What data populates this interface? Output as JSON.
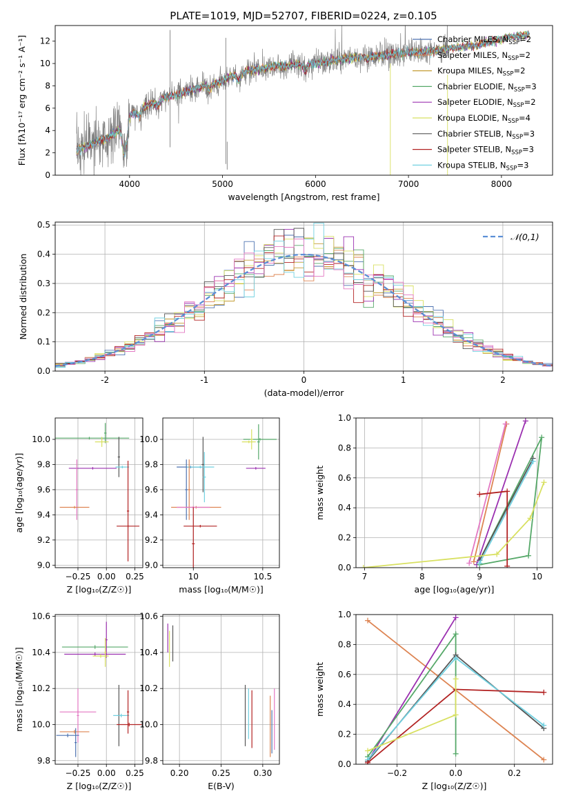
{
  "chart_data": [
    {
      "type": "line",
      "title": "PLATE=1019, MJD=52707, FIBERID=0224, z=0.105",
      "xlabel": "wavelength [Angstrom, rest frame]",
      "ylabel": "Flux [fλ10⁻¹⁷ erg cm⁻² s⁻¹ A⁻¹]",
      "xlim": [
        3200,
        8550
      ],
      "ylim": [
        0,
        13.4
      ],
      "xticks": [
        4000,
        5000,
        6000,
        7000,
        8000
      ],
      "yticks": [
        0,
        2,
        4,
        6,
        8,
        10,
        12
      ],
      "legend_position": "upper-right",
      "data_series_color": "#808080",
      "spectrum_anchor": {
        "x": [
          3430,
          3500,
          3600,
          3700,
          3800,
          3900,
          3950,
          4000,
          4100,
          4200,
          4300,
          4400,
          4500,
          4600,
          4700,
          4800,
          4900,
          5000,
          5100,
          5200,
          5300,
          5400,
          5500,
          5600,
          5700,
          5800,
          5900,
          6000,
          6100,
          6200,
          6300,
          6400,
          6500,
          6600,
          6700,
          6800,
          6900,
          7000,
          7100,
          7200,
          7300,
          7400,
          7500,
          7600,
          7700,
          7800,
          7900,
          8000,
          8100,
          8200,
          8300
        ],
        "y": [
          2.3,
          2.5,
          2.8,
          3.1,
          3.5,
          4.2,
          3.2,
          5.4,
          5.9,
          6.3,
          6.6,
          7.0,
          7.2,
          7.5,
          7.7,
          8.0,
          8.2,
          8.4,
          8.9,
          9.2,
          9.4,
          9.5,
          9.7,
          9.8,
          9.8,
          9.9,
          10.0,
          10.0,
          10.1,
          10.3,
          10.4,
          10.5,
          10.6,
          10.7,
          10.7,
          10.8,
          10.9,
          11.0,
          11.0,
          11.1,
          11.2,
          11.3,
          11.4,
          11.5,
          11.6,
          11.8,
          12.0,
          12.2,
          12.4,
          12.5,
          12.6
        ]
      },
      "series": [
        {
          "name": "Chabrier MILES, N",
          "sub": "SSP",
          "tail": "=2",
          "color": "#4c72b0"
        },
        {
          "name": "Salpeter MILES, N",
          "sub": "SSP",
          "tail": "=2",
          "color": "#dd8452"
        },
        {
          "name": "Kroupa MILES, N",
          "sub": "SSP",
          "tail": "=2",
          "color": "#c49c32"
        },
        {
          "name": "Chabrier ELODIE, N",
          "sub": "SSP",
          "tail": "=3",
          "color": "#55a868"
        },
        {
          "name": "Salpeter ELODIE, N",
          "sub": "SSP",
          "tail": "=2",
          "color": "#9b30b0"
        },
        {
          "name": "Kroupa ELODIE, N",
          "sub": "SSP",
          "tail": "=4",
          "color": "#d8e060"
        },
        {
          "name": "Chabrier STELIB, N",
          "sub": "SSP",
          "tail": "=3",
          "color": "#555555"
        },
        {
          "name": "Salpeter STELIB, N",
          "sub": "SSP",
          "tail": "=3",
          "color": "#b22222"
        },
        {
          "name": "Kroupa STELIB, N",
          "sub": "SSP",
          "tail": "=3",
          "color": "#70d0e0"
        }
      ]
    },
    {
      "type": "line",
      "xlabel": "(data-model)/error",
      "ylabel": "Normed distribution",
      "xlim": [
        -2.5,
        2.5
      ],
      "ylim": [
        0,
        0.51
      ],
      "xticks": [
        -2,
        -1,
        0,
        1,
        2
      ],
      "yticks": [
        0.0,
        0.1,
        0.2,
        0.3,
        0.4,
        0.5
      ],
      "grid": true,
      "legend_position": "upper-right",
      "reference_curve": {
        "name": "𝒩(0,1)",
        "mean": 0,
        "sigma": 1,
        "color": "#5b8fd6"
      },
      "histogram_bin_width": 0.1,
      "histogram_colors": [
        "#4c72b0",
        "#dd8452",
        "#c49c32",
        "#55a868",
        "#9b30b0",
        "#d8e060",
        "#555555",
        "#b22222",
        "#70d0e0",
        "#e377c2"
      ]
    },
    {
      "type": "scatter",
      "xlabel": "Z [log₁₀(Z/Z☉)]",
      "ylabel": "age  [log₁₀(age/yr)]",
      "xlim": [
        -0.45,
        0.32
      ],
      "ylim": [
        8.98,
        10.17
      ],
      "xticks": [
        -0.25,
        0.0,
        0.25
      ],
      "xticklabels": [
        "−0.25",
        "0.00",
        "0.25"
      ],
      "yticks": [
        9.0,
        9.2,
        9.4,
        9.6,
        9.8,
        10.0
      ],
      "grid": true,
      "points": [
        {
          "x": -0.15,
          "xerr": 0.35,
          "y": 10.01,
          "yerr": 0.01,
          "color": "#55a868"
        },
        {
          "x": -0.01,
          "xerr": 0.01,
          "y": 10.05,
          "yerr": 0.08,
          "color": "#55a868"
        },
        {
          "x": -0.04,
          "xerr": 0.06,
          "y": 9.98,
          "yerr": 0.04,
          "color": "#d8e060"
        },
        {
          "x": 0.11,
          "xerr": 0.01,
          "y": 9.86,
          "yerr": 0.16,
          "color": "#555555"
        },
        {
          "x": -0.12,
          "xerr": 0.21,
          "y": 9.77,
          "yerr": 0.01,
          "color": "#9b30b0"
        },
        {
          "x": 0.14,
          "xerr": 0.06,
          "y": 9.78,
          "yerr": 0.01,
          "color": "#70d0e0"
        },
        {
          "x": -0.26,
          "xerr": 0.01,
          "y": 9.6,
          "yerr": 0.24,
          "color": "#e377c2"
        },
        {
          "x": -0.28,
          "xerr": 0.13,
          "y": 9.46,
          "yerr": 0.01,
          "color": "#dd8452"
        },
        {
          "x": 0.19,
          "xerr": 0.1,
          "y": 9.31,
          "yerr": 0.01,
          "color": "#b22222"
        },
        {
          "x": 0.19,
          "xerr": 0.01,
          "y": 9.43,
          "yerr": 0.4,
          "color": "#b22222"
        }
      ]
    },
    {
      "type": "scatter",
      "xlabel": "mass [log₁₀(M/M☉)]",
      "xlim": [
        9.78,
        10.62
      ],
      "ylim": [
        8.98,
        10.17
      ],
      "xticks": [
        10.0,
        10.5
      ],
      "yticks": [
        9.0,
        9.2,
        9.4,
        9.6,
        9.8,
        10.0
      ],
      "grid": true,
      "points": [
        {
          "x": 10.48,
          "xerr": 0.12,
          "y": 10.0,
          "yerr": 0.01,
          "color": "#55a868"
        },
        {
          "x": 10.47,
          "xerr": 0.01,
          "y": 9.98,
          "yerr": 0.14,
          "color": "#55a868"
        },
        {
          "x": 10.4,
          "xerr": 0.05,
          "y": 9.98,
          "yerr": 0.01,
          "color": "#d8e060"
        },
        {
          "x": 10.42,
          "xerr": 0.01,
          "y": 10.0,
          "yerr": 0.08,
          "color": "#d8e060"
        },
        {
          "x": 10.45,
          "xerr": 0.07,
          "y": 9.77,
          "yerr": 0.01,
          "color": "#9b30b0"
        },
        {
          "x": 10.07,
          "xerr": 0.01,
          "y": 9.8,
          "yerr": 0.22,
          "color": "#555555"
        },
        {
          "x": 9.98,
          "xerr": 0.1,
          "y": 9.78,
          "yerr": 0.01,
          "color": "#4c72b0"
        },
        {
          "x": 10.05,
          "xerr": 0.1,
          "y": 9.78,
          "yerr": 0.01,
          "color": "#70d0e0"
        },
        {
          "x": 10.08,
          "xerr": 0.01,
          "y": 9.7,
          "yerr": 0.2,
          "color": "#70d0e0"
        },
        {
          "x": 9.95,
          "xerr": 0.01,
          "y": 9.6,
          "yerr": 0.24,
          "color": "#4c72b0"
        },
        {
          "x": 9.97,
          "xerr": 0.01,
          "y": 9.6,
          "yerr": 0.24,
          "color": "#dd8452"
        },
        {
          "x": 10.02,
          "xerr": 0.18,
          "y": 9.46,
          "yerr": 0.01,
          "color": "#dd8452"
        },
        {
          "x": 10.0,
          "xerr": 0.12,
          "y": 9.46,
          "yerr": 0.01,
          "color": "#e377c2"
        },
        {
          "x": 10.0,
          "xerr": 0.01,
          "y": 9.17,
          "yerr": 0.29,
          "color": "#b22222"
        },
        {
          "x": 10.05,
          "xerr": 0.12,
          "y": 9.31,
          "yerr": 0.01,
          "color": "#b22222"
        }
      ]
    },
    {
      "type": "line",
      "xlabel": "age  [log₁₀(age/yr)]",
      "ylabel": "mass weight",
      "xlim": [
        6.85,
        10.27
      ],
      "ylim": [
        0,
        1.0
      ],
      "xticks": [
        7,
        8,
        9,
        10
      ],
      "yticks": [
        0.0,
        0.2,
        0.4,
        0.6,
        0.8,
        1.0
      ],
      "grid": true,
      "series": [
        {
          "color": "#dd8452",
          "x": [
            8.9,
            9.47
          ],
          "y": [
            0.04,
            0.96
          ]
        },
        {
          "color": "#e377c2",
          "x": [
            8.82,
            9.45
          ],
          "y": [
            0.03,
            0.96
          ]
        },
        {
          "color": "#9b30b0",
          "x": [
            8.95,
            9.8
          ],
          "y": [
            0.02,
            0.98
          ]
        },
        {
          "color": "#55a868",
          "x": [
            9.0,
            9.85,
            10.08,
            9.0
          ],
          "y": [
            0.02,
            0.08,
            0.87,
            0.05
          ]
        },
        {
          "color": "#555555",
          "x": [
            9.0,
            9.93
          ],
          "y": [
            0.05,
            0.73
          ]
        },
        {
          "color": "#70d0e0",
          "x": [
            9.0,
            9.93
          ],
          "y": [
            0.03,
            0.71
          ]
        },
        {
          "color": "#b22222",
          "x": [
            9.0,
            9.48,
            9.48
          ],
          "y": [
            0.49,
            0.51,
            0.01
          ]
        },
        {
          "color": "#d8e060",
          "x": [
            6.98,
            9.3,
            9.88,
            10.12
          ],
          "y": [
            0.0,
            0.09,
            0.33,
            0.57
          ]
        }
      ]
    },
    {
      "type": "scatter",
      "xlabel": "Z [log₁₀(Z/Z☉)]",
      "ylabel": "mass [log₁₀(M/M☉)]",
      "xlim": [
        -0.45,
        0.32
      ],
      "ylim": [
        9.78,
        10.61
      ],
      "xticks": [
        -0.25,
        0.0,
        0.25
      ],
      "xticklabels": [
        "−0.25",
        "0.00",
        "0.25"
      ],
      "yticks": [
        9.8,
        10.0,
        10.2,
        10.4,
        10.6
      ],
      "grid": true,
      "points": [
        {
          "x": -0.1,
          "xerr": 0.29,
          "y": 10.43,
          "yerr": 0.01,
          "color": "#55a868"
        },
        {
          "x": 0.0,
          "xerr": 0.01,
          "y": 10.47,
          "yerr": 0.1,
          "color": "#9b30b0"
        },
        {
          "x": -0.1,
          "xerr": 0.27,
          "y": 10.39,
          "yerr": 0.01,
          "color": "#9b30b0"
        },
        {
          "x": -0.05,
          "xerr": 0.07,
          "y": 10.38,
          "yerr": 0.01,
          "color": "#d8e060"
        },
        {
          "x": -0.01,
          "xerr": 0.01,
          "y": 10.4,
          "yerr": 0.08,
          "color": "#d8e060"
        },
        {
          "x": -0.25,
          "xerr": 0.16,
          "y": 10.07,
          "yerr": 0.01,
          "color": "#e377c2"
        },
        {
          "x": -0.25,
          "xerr": 0.01,
          "y": 10.05,
          "yerr": 0.15,
          "color": "#e377c2"
        },
        {
          "x": -0.28,
          "xerr": 0.13,
          "y": 9.96,
          "yerr": 0.01,
          "color": "#dd8452"
        },
        {
          "x": -0.34,
          "xerr": 0.1,
          "y": 9.94,
          "yerr": 0.01,
          "color": "#4c72b0"
        },
        {
          "x": -0.27,
          "xerr": 0.01,
          "y": 9.9,
          "yerr": 0.08,
          "color": "#4c72b0"
        },
        {
          "x": 0.11,
          "xerr": 0.01,
          "y": 10.05,
          "yerr": 0.17,
          "color": "#555555"
        },
        {
          "x": 0.13,
          "xerr": 0.07,
          "y": 10.05,
          "yerr": 0.01,
          "color": "#70d0e0"
        },
        {
          "x": 0.19,
          "xerr": 0.01,
          "y": 10.07,
          "yerr": 0.12,
          "color": "#b22222"
        },
        {
          "x": 0.2,
          "xerr": 0.11,
          "y": 10.0,
          "yerr": 0.01,
          "color": "#b22222"
        }
      ]
    },
    {
      "type": "scatter",
      "xlabel": "E(B-V)",
      "xlim": [
        0.18,
        0.32
      ],
      "ylim": [
        9.78,
        10.61
      ],
      "xticks": [
        0.2,
        0.25,
        0.3
      ],
      "xticklabels": [
        "0.20",
        "0.25",
        "0.30"
      ],
      "yticks": [
        9.8,
        10.0,
        10.2,
        10.4,
        10.6
      ],
      "grid": true,
      "points": [
        {
          "x": 0.186,
          "xerr": 0,
          "y": 10.48,
          "yerr": 0.08,
          "color": "#9b30b0"
        },
        {
          "x": 0.188,
          "xerr": 0,
          "y": 10.42,
          "yerr": 0.1,
          "color": "#d8e060"
        },
        {
          "x": 0.192,
          "xerr": 0,
          "y": 10.45,
          "yerr": 0.1,
          "color": "#555555"
        },
        {
          "x": 0.279,
          "xerr": 0,
          "y": 10.05,
          "yerr": 0.17,
          "color": "#555555"
        },
        {
          "x": 0.283,
          "xerr": 0,
          "y": 10.06,
          "yerr": 0.14,
          "color": "#70d0e0"
        },
        {
          "x": 0.287,
          "xerr": 0,
          "y": 10.03,
          "yerr": 0.16,
          "color": "#b22222"
        },
        {
          "x": 0.309,
          "xerr": 0,
          "y": 9.99,
          "yerr": 0.17,
          "color": "#dd8452"
        },
        {
          "x": 0.311,
          "xerr": 0,
          "y": 9.96,
          "yerr": 0.12,
          "color": "#4c72b0"
        },
        {
          "x": 0.314,
          "xerr": 0,
          "y": 10.03,
          "yerr": 0.17,
          "color": "#e377c2"
        }
      ]
    },
    {
      "type": "line",
      "xlabel": "Z [log₁₀(Z/Z☉)]",
      "ylabel": "mass weight",
      "xlim": [
        -0.34,
        0.33
      ],
      "ylim": [
        0,
        1.0
      ],
      "xticks": [
        -0.2,
        0.0,
        0.2
      ],
      "xticklabels": [
        "−0.2",
        "0.0",
        "0.2"
      ],
      "yticks": [
        0.0,
        0.2,
        0.4,
        0.6,
        0.8,
        1.0
      ],
      "grid": true,
      "series": [
        {
          "color": "#dd8452",
          "x": [
            -0.3,
            0.3
          ],
          "y": [
            0.96,
            0.03
          ]
        },
        {
          "color": "#9b30b0",
          "x": [
            -0.3,
            0.0
          ],
          "y": [
            0.02,
            0.98
          ]
        },
        {
          "color": "#55a868",
          "x": [
            -0.3,
            0.0,
            0.0
          ],
          "y": [
            0.05,
            0.87,
            0.07
          ]
        },
        {
          "color": "#555555",
          "x": [
            -0.3,
            0.0,
            0.3
          ],
          "y": [
            0.02,
            0.73,
            0.24
          ]
        },
        {
          "color": "#70d0e0",
          "x": [
            -0.3,
            0.0,
            0.3
          ],
          "y": [
            0.03,
            0.71,
            0.26
          ]
        },
        {
          "color": "#b22222",
          "x": [
            -0.3,
            0.0,
            0.3
          ],
          "y": [
            0.01,
            0.5,
            0.48
          ]
        },
        {
          "color": "#d8e060",
          "x": [
            -0.3,
            0.0,
            0.0
          ],
          "y": [
            0.09,
            0.33,
            0.57
          ]
        }
      ]
    }
  ]
}
